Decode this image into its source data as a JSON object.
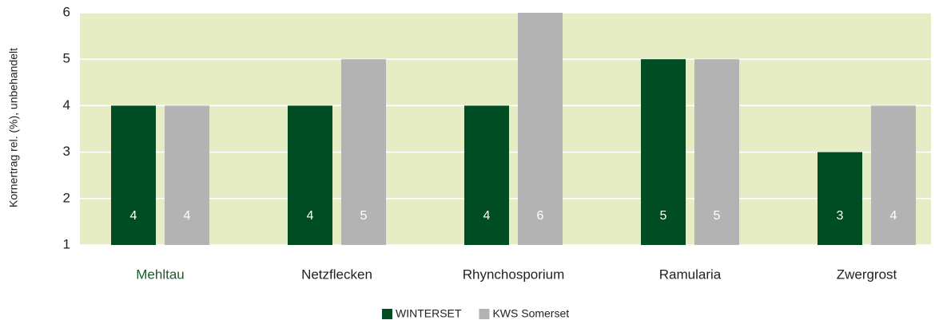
{
  "chart_data": {
    "type": "bar",
    "y_label": "Kornertrag rel. (%), unbehandelt",
    "categories": [
      "Mehltau",
      "Netzflecken",
      "Rhynchosporium",
      "Ramularia",
      "Zwergrost"
    ],
    "series": [
      {
        "name": "WINTERSET",
        "color": "#004d23",
        "values": [
          4,
          4,
          4,
          5,
          3
        ]
      },
      {
        "name": "KWS Somerset",
        "color": "#b3b3b3",
        "values": [
          4,
          5,
          6,
          5,
          4
        ]
      }
    ],
    "ylim": [
      1,
      6
    ],
    "yticks": [
      1,
      2,
      3,
      4,
      5,
      6
    ],
    "grid": true,
    "background": "#e6edc4",
    "legend": "bottom"
  }
}
